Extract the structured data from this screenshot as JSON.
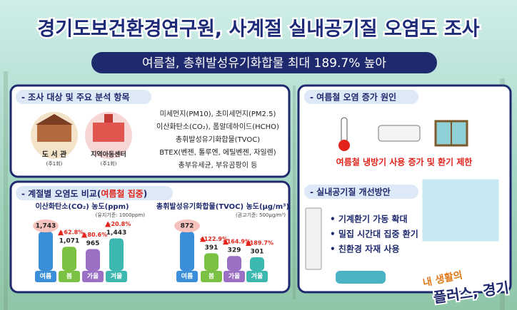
{
  "header": {
    "title": "경기도보건환경연구원, 사계절 실내공기질 오염도 조사",
    "subtitle": "여름철, 총휘발성유기화합물 최대 189.7% 높아"
  },
  "survey": {
    "heading": "- 조사 대상 및 주요 분석 항목",
    "sites": [
      {
        "name": "도 서 관",
        "frequency": "(주1회)"
      },
      {
        "name": "지역아동센터",
        "frequency": "(주1회)"
      }
    ],
    "items": [
      "미세먼지(PM10), 초미세먼지(PM2.5)",
      "이산화탄소(CO₂), 폼알데하이드(HCHO)",
      "총휘발성유기화합물(TVOC)",
      "BTEX(벤젠, 톨루엔, 에틸벤젠, 자일렌)",
      "총부유세균, 부유곰팡이 등"
    ]
  },
  "comparison": {
    "heading_prefix": "- 계절별 오염도 비교(",
    "heading_highlight": "여름철 집중",
    "heading_suffix": ")",
    "charts": [
      {
        "title": "이산화탄소(CO₂) 농도(ppm)",
        "standard": "(유지기준: 1000ppm)",
        "categories": [
          "여름",
          "봄",
          "가을",
          "겨울"
        ],
        "values": [
          1743,
          1071,
          965,
          1443
        ],
        "value_labels": [
          "1,743",
          "1,071",
          "965",
          "1,443"
        ],
        "increases": [
          null,
          "+62.8%",
          "+80.6%",
          "+20.8%"
        ]
      },
      {
        "title": "총휘발성유기화합물(TVOC) 농도(μg/m³)",
        "standard": "(권고기준: 500μg/m³)",
        "categories": [
          "여름",
          "봄",
          "가을",
          "겨울"
        ],
        "values": [
          872,
          391,
          329,
          301
        ],
        "increases": [
          null,
          "+122.9%",
          "+164.9%",
          "+189.7%"
        ]
      }
    ],
    "colors": [
      "#3a8fd8",
      "#7cc242",
      "#9a6fc4",
      "#3cb8b0"
    ]
  },
  "causes": {
    "heading": "- 여름철 오염 증가 원인",
    "cause": "여름철 냉방기 사용 증가 및 환기 제한"
  },
  "improvements": {
    "heading": "- 실내공기질 개선방안",
    "items": [
      "• 기계환기 가동 확대",
      "• 밀집 시간대 집중 환기",
      "• 친환경 자재 사용"
    ]
  },
  "logo": {
    "line1": "내 생활의",
    "line2": "플러스, 경기"
  }
}
